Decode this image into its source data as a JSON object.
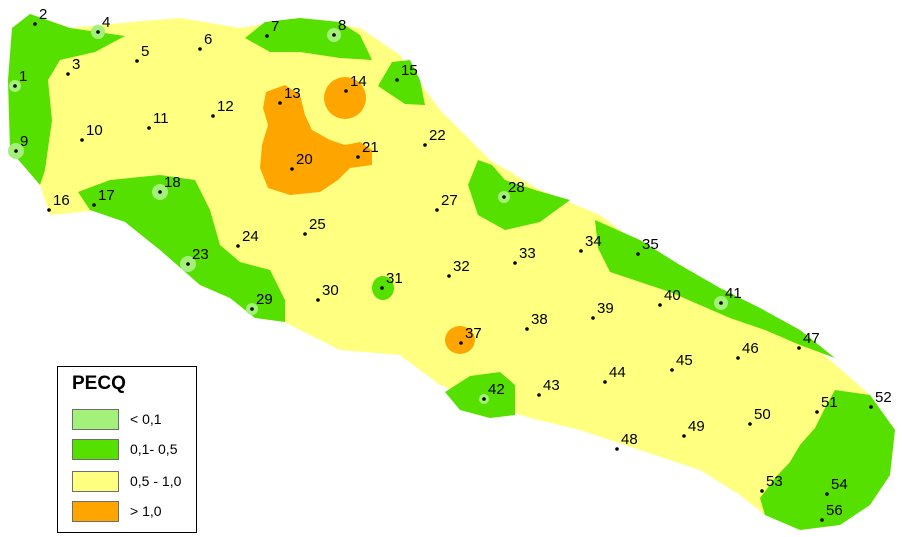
{
  "legend": {
    "title": "PECQ",
    "classes": [
      {
        "label": "< 0,1",
        "color": "#a3f07a"
      },
      {
        "label": "0,1- 0,5",
        "color": "#55e000"
      },
      {
        "label": "0,5 - 1,0",
        "color": "#ffff80"
      },
      {
        "label": "> 1,0",
        "color": "#ffa500"
      }
    ]
  },
  "sampling_points": [
    "1",
    "2",
    "3",
    "4",
    "5",
    "6",
    "7",
    "8",
    "9",
    "10",
    "11",
    "12",
    "13",
    "14",
    "15",
    "16",
    "17",
    "18",
    "20",
    "21",
    "22",
    "23",
    "24",
    "25",
    "27",
    "28",
    "29",
    "30",
    "31",
    "32",
    "33",
    "34",
    "35",
    "37",
    "38",
    "39",
    "40",
    "41",
    "42",
    "43",
    "44",
    "45",
    "46",
    "47",
    "48",
    "49",
    "50",
    "51",
    "52",
    "53",
    "54",
    "56"
  ],
  "colors": {
    "low": "#a3f07a",
    "low_mid": "#55e000",
    "mid_high": "#ffff80",
    "high": "#ffa500",
    "point": "#000000"
  }
}
